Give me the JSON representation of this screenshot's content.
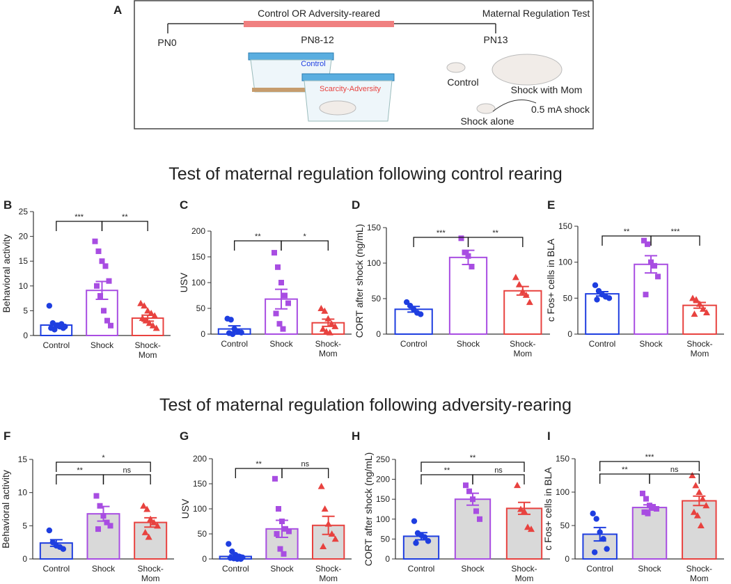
{
  "panel_a": {
    "letter": "A",
    "phase1": "Control OR Adversity-reared",
    "phase2": "Maternal Regulation Test",
    "start": "PN0",
    "window": "PN8-12",
    "end": "PN13",
    "cage_control": "Control",
    "cage_adversity": "Scarcity-Adversity",
    "cond_control": "Control",
    "cond_mom": "Shock with Mom",
    "cond_shock": "0.5 mA shock",
    "cond_alone": "Shock alone"
  },
  "titles": [
    "Test of maternal regulation following control rearing",
    "Test of maternal regulation following adversity-rearing"
  ],
  "chart_data": [
    {
      "type": "bar",
      "panel": "B",
      "ylabel": "Behavioral activity",
      "categories": [
        "Control",
        "Shock",
        "Shock-\nMom"
      ],
      "values": [
        2.1,
        9.1,
        3.5
      ],
      "errors": [
        0.4,
        1.8,
        0.6
      ],
      "points": [
        [
          6,
          2.5,
          2,
          1.8,
          1.5,
          1.5,
          1.2,
          2,
          2.3,
          1.8
        ],
        [
          19,
          17,
          15,
          14,
          11,
          10,
          8,
          5,
          3,
          2
        ],
        [
          6.5,
          6,
          5,
          4.5,
          4,
          3.5,
          3,
          2.5,
          2,
          1.5
        ]
      ],
      "colors": [
        "#1e3ee0",
        "#a84de2",
        "#e8423f"
      ],
      "markers": [
        "circle",
        "square",
        "triangle"
      ],
      "bar_fill": "#ffffff",
      "ylim": [
        0,
        25
      ],
      "yticks": [
        0,
        5,
        10,
        15,
        20,
        25
      ],
      "significance": [
        {
          "groups": [
            "Control",
            "Shock"
          ],
          "label": "***"
        },
        {
          "groups": [
            "Shock",
            "Shock-\nMom"
          ],
          "label": "**"
        }
      ]
    },
    {
      "type": "bar",
      "panel": "C",
      "ylabel": "USV",
      "categories": [
        "Control",
        "Shock",
        "Shock-\nMom"
      ],
      "values": [
        10,
        68,
        22
      ],
      "errors": [
        6,
        19,
        7
      ],
      "points": [
        [
          30,
          28,
          10,
          5,
          3,
          2,
          0
        ],
        [
          158,
          130,
          100,
          75,
          60,
          40,
          20,
          10
        ],
        [
          50,
          45,
          30,
          20,
          15,
          10,
          5,
          3
        ]
      ],
      "colors": [
        "#1e3ee0",
        "#a84de2",
        "#e8423f"
      ],
      "markers": [
        "circle",
        "square",
        "triangle"
      ],
      "bar_fill": "#ffffff",
      "ylim": [
        0,
        200
      ],
      "yticks": [
        0,
        50,
        100,
        150,
        200
      ],
      "significance": [
        {
          "groups": [
            "Control",
            "Shock"
          ],
          "label": "**"
        },
        {
          "groups": [
            "Shock",
            "Shock-\nMom"
          ],
          "label": "*"
        }
      ]
    },
    {
      "type": "bar",
      "panel": "D",
      "ylabel": "CORT after shock (ng/mL)",
      "categories": [
        "Control",
        "Shock",
        "Shock-\nMom"
      ],
      "values": [
        35,
        108,
        61
      ],
      "errors": [
        4,
        10,
        6
      ],
      "points": [
        [
          45,
          40,
          35,
          30,
          28
        ],
        [
          135,
          115,
          110,
          95
        ],
        [
          80,
          70,
          60,
          55,
          45
        ]
      ],
      "colors": [
        "#1e3ee0",
        "#a84de2",
        "#e8423f"
      ],
      "markers": [
        "circle",
        "square",
        "triangle"
      ],
      "bar_fill": "#ffffff",
      "ylim": [
        0,
        150
      ],
      "yticks": [
        0,
        50,
        100,
        150
      ],
      "significance": [
        {
          "groups": [
            "Control",
            "Shock"
          ],
          "label": "***"
        },
        {
          "groups": [
            "Shock",
            "Shock-\nMom"
          ],
          "label": "**"
        }
      ]
    },
    {
      "type": "bar",
      "panel": "E",
      "ylabel": "c Fos+ cells in BLA",
      "categories": [
        "Control",
        "Shock",
        "Shock-\nMom"
      ],
      "values": [
        56,
        97,
        40
      ],
      "errors": [
        3,
        12,
        4
      ],
      "points": [
        [
          68,
          60,
          55,
          52,
          50,
          48
        ],
        [
          130,
          125,
          100,
          95,
          80,
          55
        ],
        [
          50,
          48,
          42,
          35,
          30,
          28
        ]
      ],
      "colors": [
        "#1e3ee0",
        "#a84de2",
        "#e8423f"
      ],
      "markers": [
        "circle",
        "square",
        "triangle"
      ],
      "bar_fill": "#ffffff",
      "ylim": [
        0,
        150
      ],
      "yticks": [
        0,
        50,
        100,
        150
      ],
      "significance": [
        {
          "groups": [
            "Control",
            "Shock"
          ],
          "label": "**"
        },
        {
          "groups": [
            "Shock",
            "Shock-\nMom"
          ],
          "label": "***"
        }
      ]
    },
    {
      "type": "bar",
      "panel": "F",
      "ylabel": "Behavioral activity",
      "categories": [
        "Control",
        "Shock",
        "Shock-\nMom"
      ],
      "values": [
        2.4,
        6.8,
        5.5
      ],
      "errors": [
        0.5,
        1.1,
        0.7
      ],
      "points": [
        [
          4.3,
          2.5,
          2,
          1.8,
          1.5
        ],
        [
          9.5,
          8,
          6.5,
          5.5,
          5,
          4.5
        ],
        [
          8,
          7.5,
          6,
          5.5,
          5,
          4,
          3.3
        ]
      ],
      "colors": [
        "#1e3ee0",
        "#a84de2",
        "#e8423f"
      ],
      "markers": [
        "circle",
        "square",
        "triangle"
      ],
      "bar_fill": "#d9d9d9",
      "ylim": [
        0,
        15
      ],
      "yticks": [
        0,
        5,
        10,
        15
      ],
      "significance": [
        {
          "groups": [
            "Control",
            "Shock-\nMom"
          ],
          "label": "*"
        },
        {
          "groups": [
            "Control",
            "Shock"
          ],
          "label": "**"
        },
        {
          "groups": [
            "Shock",
            "Shock-\nMom"
          ],
          "label": "ns"
        }
      ]
    },
    {
      "type": "bar",
      "panel": "G",
      "ylabel": "USV",
      "categories": [
        "Control",
        "Shock",
        "Shock-\nMom"
      ],
      "values": [
        5,
        60,
        67
      ],
      "errors": [
        3,
        17,
        18
      ],
      "points": [
        [
          30,
          15,
          8,
          5,
          3,
          2,
          1,
          0,
          0
        ],
        [
          160,
          100,
          75,
          60,
          55,
          50,
          20,
          10
        ],
        [
          145,
          100,
          70,
          50,
          40,
          25
        ]
      ],
      "colors": [
        "#1e3ee0",
        "#a84de2",
        "#e8423f"
      ],
      "markers": [
        "circle",
        "square",
        "triangle"
      ],
      "bar_fill": "#d9d9d9",
      "ylim": [
        0,
        200
      ],
      "yticks": [
        0,
        50,
        100,
        150,
        200
      ],
      "significance": [
        {
          "groups": [
            "Control",
            "Shock"
          ],
          "label": "**"
        },
        {
          "groups": [
            "Shock",
            "Shock-\nMom"
          ],
          "label": "ns"
        }
      ]
    },
    {
      "type": "bar",
      "panel": "H",
      "ylabel": "CORT after shock (ng/mL)",
      "categories": [
        "Control",
        "Shock",
        "Shock-\nMom"
      ],
      "values": [
        57,
        150,
        127
      ],
      "errors": [
        9,
        15,
        15
      ],
      "points": [
        [
          95,
          65,
          60,
          55,
          45,
          40
        ],
        [
          185,
          170,
          150,
          120,
          100
        ],
        [
          185,
          125,
          120,
          80,
          75
        ]
      ],
      "colors": [
        "#1e3ee0",
        "#a84de2",
        "#e8423f"
      ],
      "markers": [
        "circle",
        "square",
        "triangle"
      ],
      "bar_fill": "#d9d9d9",
      "ylim": [
        0,
        250
      ],
      "yticks": [
        0,
        50,
        100,
        150,
        200,
        250
      ],
      "significance": [
        {
          "groups": [
            "Control",
            "Shock-\nMom"
          ],
          "label": "**"
        },
        {
          "groups": [
            "Control",
            "Shock"
          ],
          "label": "**"
        },
        {
          "groups": [
            "Shock",
            "Shock-\nMom"
          ],
          "label": "ns"
        }
      ]
    },
    {
      "type": "bar",
      "panel": "I",
      "ylabel": "c Fos+ cells in BLA",
      "categories": [
        "Control",
        "Shock",
        "Shock-\nMom"
      ],
      "values": [
        37,
        77,
        87
      ],
      "errors": [
        10,
        4,
        7
      ],
      "points": [
        [
          68,
          60,
          40,
          30,
          15,
          10
        ],
        [
          98,
          90,
          80,
          78,
          75,
          70,
          68
        ],
        [
          125,
          110,
          100,
          90,
          80,
          70,
          65,
          50
        ]
      ],
      "colors": [
        "#1e3ee0",
        "#a84de2",
        "#e8423f"
      ],
      "markers": [
        "circle",
        "square",
        "triangle"
      ],
      "bar_fill": "#d9d9d9",
      "ylim": [
        0,
        150
      ],
      "yticks": [
        0,
        50,
        100,
        150
      ],
      "significance": [
        {
          "groups": [
            "Control",
            "Shock-\nMom"
          ],
          "label": "***"
        },
        {
          "groups": [
            "Control",
            "Shock"
          ],
          "label": "**"
        },
        {
          "groups": [
            "Shock",
            "Shock-\nMom"
          ],
          "label": "ns"
        }
      ]
    }
  ]
}
